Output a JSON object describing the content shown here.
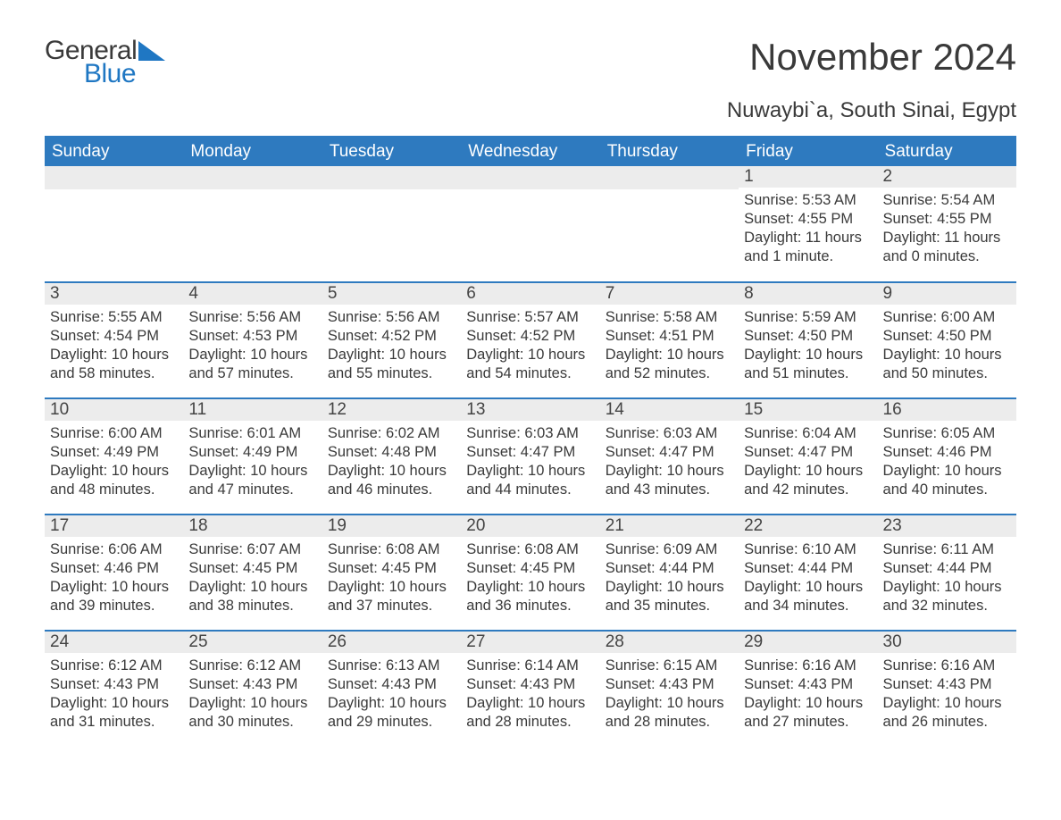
{
  "logo": {
    "text1": "General",
    "text2": "Blue",
    "tri_color": "#1f77c3"
  },
  "title": "November 2024",
  "location": "Nuwaybi`a, South Sinai, Egypt",
  "colors": {
    "header_bg": "#2e7abf",
    "header_text": "#ffffff",
    "row_border": "#2e7abf",
    "daynum_bg": "#ececec",
    "body_text": "#3a3a3a",
    "page_bg": "#ffffff"
  },
  "fonts": {
    "title_size": 42,
    "location_size": 24,
    "header_size": 19,
    "daynum_size": 19,
    "body_size": 16.5
  },
  "weekdays": [
    "Sunday",
    "Monday",
    "Tuesday",
    "Wednesday",
    "Thursday",
    "Friday",
    "Saturday"
  ],
  "weeks": [
    [
      null,
      null,
      null,
      null,
      null,
      {
        "n": "1",
        "sunrise": "Sunrise: 5:53 AM",
        "sunset": "Sunset: 4:55 PM",
        "day1": "Daylight: 11 hours",
        "day2": "and 1 minute."
      },
      {
        "n": "2",
        "sunrise": "Sunrise: 5:54 AM",
        "sunset": "Sunset: 4:55 PM",
        "day1": "Daylight: 11 hours",
        "day2": "and 0 minutes."
      }
    ],
    [
      {
        "n": "3",
        "sunrise": "Sunrise: 5:55 AM",
        "sunset": "Sunset: 4:54 PM",
        "day1": "Daylight: 10 hours",
        "day2": "and 58 minutes."
      },
      {
        "n": "4",
        "sunrise": "Sunrise: 5:56 AM",
        "sunset": "Sunset: 4:53 PM",
        "day1": "Daylight: 10 hours",
        "day2": "and 57 minutes."
      },
      {
        "n": "5",
        "sunrise": "Sunrise: 5:56 AM",
        "sunset": "Sunset: 4:52 PM",
        "day1": "Daylight: 10 hours",
        "day2": "and 55 minutes."
      },
      {
        "n": "6",
        "sunrise": "Sunrise: 5:57 AM",
        "sunset": "Sunset: 4:52 PM",
        "day1": "Daylight: 10 hours",
        "day2": "and 54 minutes."
      },
      {
        "n": "7",
        "sunrise": "Sunrise: 5:58 AM",
        "sunset": "Sunset: 4:51 PM",
        "day1": "Daylight: 10 hours",
        "day2": "and 52 minutes."
      },
      {
        "n": "8",
        "sunrise": "Sunrise: 5:59 AM",
        "sunset": "Sunset: 4:50 PM",
        "day1": "Daylight: 10 hours",
        "day2": "and 51 minutes."
      },
      {
        "n": "9",
        "sunrise": "Sunrise: 6:00 AM",
        "sunset": "Sunset: 4:50 PM",
        "day1": "Daylight: 10 hours",
        "day2": "and 50 minutes."
      }
    ],
    [
      {
        "n": "10",
        "sunrise": "Sunrise: 6:00 AM",
        "sunset": "Sunset: 4:49 PM",
        "day1": "Daylight: 10 hours",
        "day2": "and 48 minutes."
      },
      {
        "n": "11",
        "sunrise": "Sunrise: 6:01 AM",
        "sunset": "Sunset: 4:49 PM",
        "day1": "Daylight: 10 hours",
        "day2": "and 47 minutes."
      },
      {
        "n": "12",
        "sunrise": "Sunrise: 6:02 AM",
        "sunset": "Sunset: 4:48 PM",
        "day1": "Daylight: 10 hours",
        "day2": "and 46 minutes."
      },
      {
        "n": "13",
        "sunrise": "Sunrise: 6:03 AM",
        "sunset": "Sunset: 4:47 PM",
        "day1": "Daylight: 10 hours",
        "day2": "and 44 minutes."
      },
      {
        "n": "14",
        "sunrise": "Sunrise: 6:03 AM",
        "sunset": "Sunset: 4:47 PM",
        "day1": "Daylight: 10 hours",
        "day2": "and 43 minutes."
      },
      {
        "n": "15",
        "sunrise": "Sunrise: 6:04 AM",
        "sunset": "Sunset: 4:47 PM",
        "day1": "Daylight: 10 hours",
        "day2": "and 42 minutes."
      },
      {
        "n": "16",
        "sunrise": "Sunrise: 6:05 AM",
        "sunset": "Sunset: 4:46 PM",
        "day1": "Daylight: 10 hours",
        "day2": "and 40 minutes."
      }
    ],
    [
      {
        "n": "17",
        "sunrise": "Sunrise: 6:06 AM",
        "sunset": "Sunset: 4:46 PM",
        "day1": "Daylight: 10 hours",
        "day2": "and 39 minutes."
      },
      {
        "n": "18",
        "sunrise": "Sunrise: 6:07 AM",
        "sunset": "Sunset: 4:45 PM",
        "day1": "Daylight: 10 hours",
        "day2": "and 38 minutes."
      },
      {
        "n": "19",
        "sunrise": "Sunrise: 6:08 AM",
        "sunset": "Sunset: 4:45 PM",
        "day1": "Daylight: 10 hours",
        "day2": "and 37 minutes."
      },
      {
        "n": "20",
        "sunrise": "Sunrise: 6:08 AM",
        "sunset": "Sunset: 4:45 PM",
        "day1": "Daylight: 10 hours",
        "day2": "and 36 minutes."
      },
      {
        "n": "21",
        "sunrise": "Sunrise: 6:09 AM",
        "sunset": "Sunset: 4:44 PM",
        "day1": "Daylight: 10 hours",
        "day2": "and 35 minutes."
      },
      {
        "n": "22",
        "sunrise": "Sunrise: 6:10 AM",
        "sunset": "Sunset: 4:44 PM",
        "day1": "Daylight: 10 hours",
        "day2": "and 34 minutes."
      },
      {
        "n": "23",
        "sunrise": "Sunrise: 6:11 AM",
        "sunset": "Sunset: 4:44 PM",
        "day1": "Daylight: 10 hours",
        "day2": "and 32 minutes."
      }
    ],
    [
      {
        "n": "24",
        "sunrise": "Sunrise: 6:12 AM",
        "sunset": "Sunset: 4:43 PM",
        "day1": "Daylight: 10 hours",
        "day2": "and 31 minutes."
      },
      {
        "n": "25",
        "sunrise": "Sunrise: 6:12 AM",
        "sunset": "Sunset: 4:43 PM",
        "day1": "Daylight: 10 hours",
        "day2": "and 30 minutes."
      },
      {
        "n": "26",
        "sunrise": "Sunrise: 6:13 AM",
        "sunset": "Sunset: 4:43 PM",
        "day1": "Daylight: 10 hours",
        "day2": "and 29 minutes."
      },
      {
        "n": "27",
        "sunrise": "Sunrise: 6:14 AM",
        "sunset": "Sunset: 4:43 PM",
        "day1": "Daylight: 10 hours",
        "day2": "and 28 minutes."
      },
      {
        "n": "28",
        "sunrise": "Sunrise: 6:15 AM",
        "sunset": "Sunset: 4:43 PM",
        "day1": "Daylight: 10 hours",
        "day2": "and 28 minutes."
      },
      {
        "n": "29",
        "sunrise": "Sunrise: 6:16 AM",
        "sunset": "Sunset: 4:43 PM",
        "day1": "Daylight: 10 hours",
        "day2": "and 27 minutes."
      },
      {
        "n": "30",
        "sunrise": "Sunrise: 6:16 AM",
        "sunset": "Sunset: 4:43 PM",
        "day1": "Daylight: 10 hours",
        "day2": "and 26 minutes."
      }
    ]
  ]
}
